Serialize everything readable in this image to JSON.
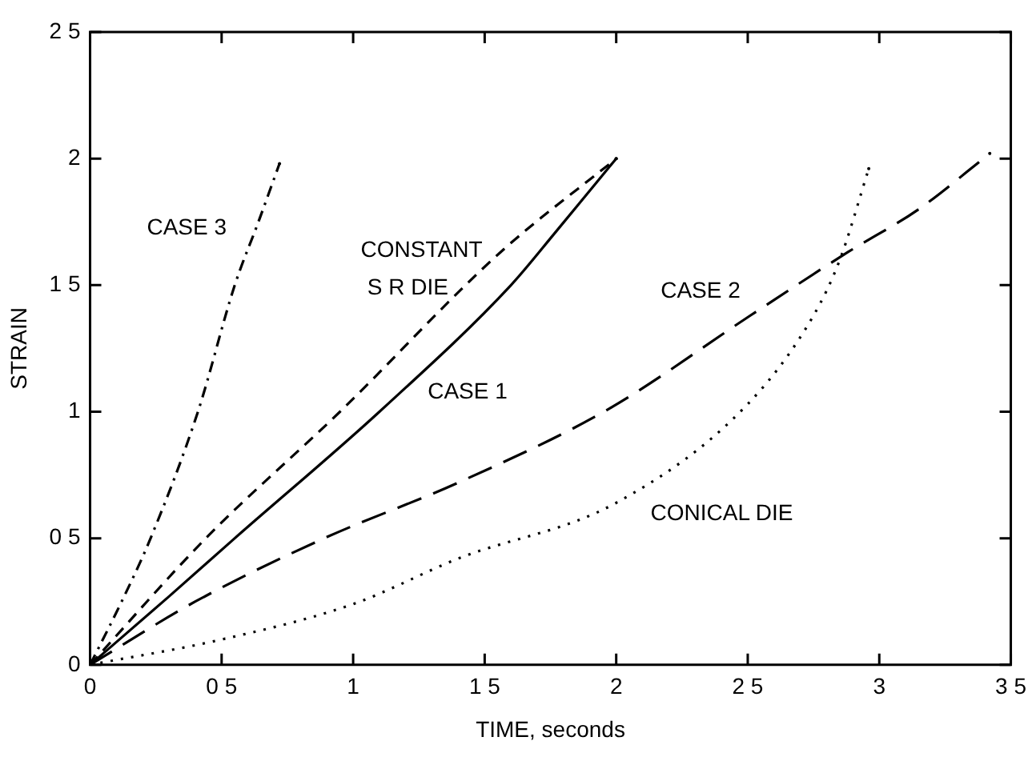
{
  "chart_data": {
    "type": "line",
    "xlabel": "TIME, seconds",
    "ylabel": "STRAIN",
    "xlim": [
      0,
      3.5
    ],
    "ylim": [
      0,
      2.5
    ],
    "xticks": [
      0,
      {
        "value": 0.5,
        "label": "0 5"
      },
      1,
      {
        "value": 1.5,
        "label": "1 5"
      },
      2,
      {
        "value": 2.5,
        "label": "2 5"
      },
      3,
      {
        "value": 3.5,
        "label": "3 5"
      }
    ],
    "yticks": [
      0,
      {
        "value": 0.5,
        "label": "0 5"
      },
      1,
      {
        "value": 1.5,
        "label": "1 5"
      },
      2,
      {
        "value": 2.5,
        "label": "2 5"
      }
    ],
    "grid": false,
    "legend": false,
    "marker": "none",
    "series": [
      {
        "color": "#000000",
        "line_style": "dashdot",
        "x": [
          0,
          0.12,
          0.23,
          0.41,
          0.55,
          0.64,
          0.72
        ],
        "values": [
          0,
          0.25,
          0.5,
          1.0,
          1.5,
          1.75,
          1.98
        ]
      },
      {
        "color": "#000000",
        "line_style": "dashed",
        "x": [
          0,
          0.44,
          0.95,
          1.56,
          2.0
        ],
        "values": [
          0,
          0.5,
          1.0,
          1.63,
          2.0
        ]
      },
      {
        "color": "#000000",
        "line_style": "solid",
        "x": [
          0,
          0.3,
          0.55,
          1.1,
          1.6,
          1.77,
          2.0
        ],
        "values": [
          0,
          0.27,
          0.5,
          1.0,
          1.5,
          1.71,
          2.0
        ]
      },
      {
        "color": "#000000",
        "line_style": "longdashed",
        "x": [
          0,
          0.4,
          0.89,
          1.4,
          1.97,
          2.51,
          2.88,
          3.15,
          3.42
        ],
        "values": [
          0,
          0.25,
          0.5,
          0.72,
          1.01,
          1.38,
          1.63,
          1.8,
          2.02
        ]
      },
      {
        "color": "#000000",
        "line_style": "dotted",
        "x": [
          0,
          0.5,
          1.0,
          1.4,
          2.0,
          2.5,
          2.75,
          2.85,
          2.96
        ],
        "values": [
          0,
          0.1,
          0.24,
          0.42,
          0.64,
          1.03,
          1.38,
          1.6,
          1.96
        ]
      }
    ],
    "annotations": [
      "CASE 3",
      "CONSTANT",
      "S R DIE",
      "CASE 1",
      "CASE 2",
      "CONICAL DIE"
    ]
  }
}
